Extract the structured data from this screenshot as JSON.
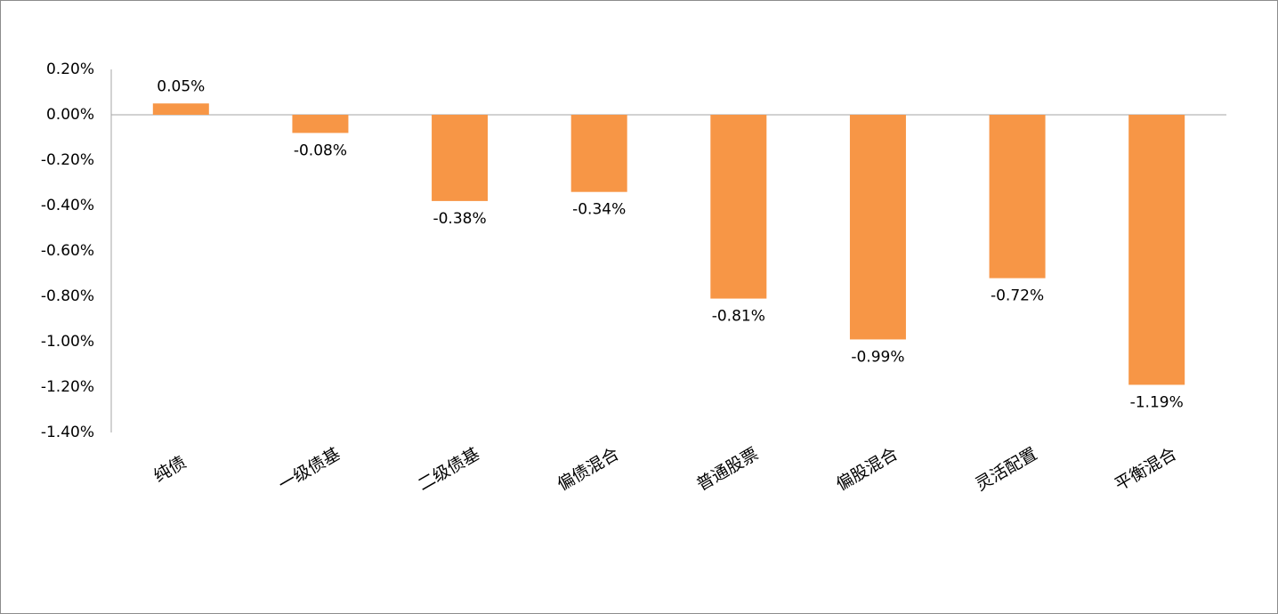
{
  "chart_data": {
    "type": "bar",
    "categories": [
      "纯债",
      "一级债基",
      "二级债基",
      "偏债混合",
      "普通股票",
      "偏股混合",
      "灵活配置",
      "平衡混合"
    ],
    "values": [
      0.05,
      -0.08,
      -0.38,
      -0.34,
      -0.81,
      -0.99,
      -0.72,
      -1.19
    ],
    "value_labels": [
      "0.05%",
      "-0.08%",
      "-0.38%",
      "-0.34%",
      "-0.81%",
      "-0.99%",
      "-0.72%",
      "-1.19%"
    ],
    "color": "#f79646",
    "ylim": [
      -1.4,
      0.2
    ],
    "yticks": [
      {
        "value": 0.2,
        "label": "0.20%"
      },
      {
        "value": 0,
        "label": "0.00%"
      },
      {
        "value": -0.2,
        "label": "-0.20%"
      },
      {
        "value": -0.4,
        "label": "-0.40%"
      },
      {
        "value": -0.6,
        "label": "-0.60%"
      },
      {
        "value": -0.8,
        "label": "-0.80%"
      },
      {
        "value": -1.0,
        "label": "-1.00%"
      },
      {
        "value": -1.2,
        "label": "-1.20%"
      },
      {
        "value": -1.4,
        "label": "-1.40%"
      }
    ],
    "grid": false
  }
}
